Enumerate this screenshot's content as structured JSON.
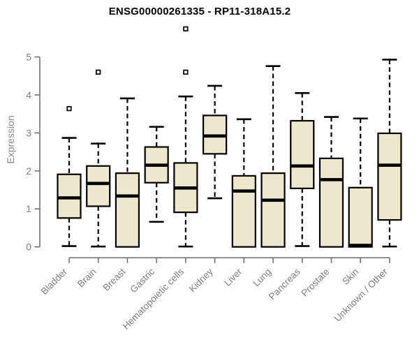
{
  "chart_data": {
    "type": "boxplot",
    "title": "ENSG00000261335 - RP11-318A15.2",
    "xlabel": "",
    "ylabel": "Expression",
    "ylim": [
      0,
      5
    ],
    "yticks": [
      0,
      1,
      2,
      3,
      4,
      5
    ],
    "grid": false,
    "legend": "none",
    "box_fill": "#ede8cd",
    "box_stroke": "#000000",
    "axis_color": "#6a6a6a",
    "tick_label_color": "#7d7d7d",
    "title_color": "#000000",
    "categories": [
      "Bladder",
      "Brain",
      "Breast",
      "Gastric",
      "Hematopoietic cells",
      "Kidney",
      "Liver",
      "Lung",
      "Pancreas",
      "Prostate",
      "Skin",
      "Unknown / Other"
    ],
    "series": [
      {
        "category": "Bladder",
        "whisker_low": 0.02,
        "q1": 0.76,
        "median": 1.29,
        "q3": 1.91,
        "whisker_high": 2.87,
        "outliers": [
          3.64
        ]
      },
      {
        "category": "Brain",
        "whisker_low": 0.01,
        "q1": 1.07,
        "median": 1.67,
        "q3": 2.13,
        "whisker_high": 2.72,
        "outliers": [
          4.6
        ]
      },
      {
        "category": "Breast",
        "whisker_low": 0.0,
        "q1": 0.0,
        "median": 1.34,
        "q3": 1.94,
        "whisker_high": 3.91,
        "outliers": []
      },
      {
        "category": "Gastric",
        "whisker_low": 0.66,
        "q1": 1.69,
        "median": 2.15,
        "q3": 2.63,
        "whisker_high": 3.16,
        "outliers": []
      },
      {
        "category": "Hematopoietic cells",
        "whisker_low": 0.01,
        "q1": 0.91,
        "median": 1.55,
        "q3": 2.21,
        "whisker_high": 3.96,
        "outliers": [
          4.6,
          5.74
        ]
      },
      {
        "category": "Kidney",
        "whisker_low": 1.28,
        "q1": 2.45,
        "median": 2.92,
        "q3": 3.46,
        "whisker_high": 4.24,
        "outliers": []
      },
      {
        "category": "Liver",
        "whisker_low": 0.0,
        "q1": 0.0,
        "median": 1.47,
        "q3": 1.87,
        "whisker_high": 3.36,
        "outliers": []
      },
      {
        "category": "Lung",
        "whisker_low": 0.0,
        "q1": 0.0,
        "median": 1.23,
        "q3": 1.94,
        "whisker_high": 4.76,
        "outliers": []
      },
      {
        "category": "Pancreas",
        "whisker_low": 0.02,
        "q1": 1.54,
        "median": 2.13,
        "q3": 3.32,
        "whisker_high": 4.05,
        "outliers": []
      },
      {
        "category": "Prostate",
        "whisker_low": 0.0,
        "q1": 0.0,
        "median": 1.77,
        "q3": 2.33,
        "whisker_high": 3.42,
        "outliers": []
      },
      {
        "category": "Skin",
        "whisker_low": 0.0,
        "q1": 0.0,
        "median": 0.04,
        "q3": 1.56,
        "whisker_high": 3.38,
        "outliers": []
      },
      {
        "category": "Unknown / Other",
        "whisker_low": 0.01,
        "q1": 0.71,
        "median": 2.15,
        "q3": 2.99,
        "whisker_high": 4.93,
        "outliers": []
      }
    ]
  }
}
